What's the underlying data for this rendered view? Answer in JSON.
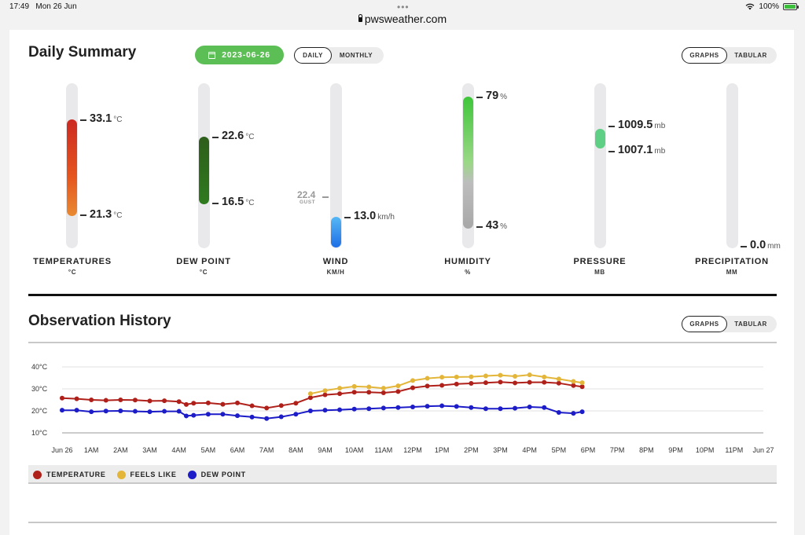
{
  "statusbar": {
    "time": "17:49",
    "date": "Mon 26 Jun",
    "battery": "100%",
    "url": "pwsweather.com"
  },
  "summary": {
    "title": "Daily Summary",
    "date": "2023-06-26",
    "period_tabs": [
      "DAILY",
      "MONTHLY"
    ],
    "view_tabs": [
      "GRAPHS",
      "TABULAR"
    ],
    "gauges": {
      "temperature": {
        "label": "TEMPERATURES",
        "unit_label": "°C",
        "high": "33.1",
        "low": "21.3",
        "unit": "°C"
      },
      "dewpoint": {
        "label": "DEW POINT",
        "unit_label": "°C",
        "high": "22.6",
        "low": "16.5",
        "unit": "°C"
      },
      "wind": {
        "label": "WIND",
        "unit_label": "KM/H",
        "value": "13.0",
        "unit": "km/h",
        "gust_value": "22.4",
        "gust_label": "GUST"
      },
      "humidity": {
        "label": "HUMIDITY",
        "unit_label": "%",
        "high": "79",
        "low": "43",
        "unit": "%"
      },
      "pressure": {
        "label": "PRESSURE",
        "unit_label": "MB",
        "high": "1009.5",
        "low": "1007.1",
        "unit": "mb"
      },
      "precipitation": {
        "label": "PRECIPITATION",
        "unit_label": "MM",
        "value": "0.0",
        "unit": "mm"
      }
    }
  },
  "history": {
    "title": "Observation History",
    "view_tabs": [
      "GRAPHS",
      "TABULAR"
    ]
  },
  "legend": [
    {
      "label": "TEMPERATURE",
      "color": "#b0201a"
    },
    {
      "label": "FEELS LIKE",
      "color": "#e3b63a"
    },
    {
      "label": "DEW POINT",
      "color": "#1c1cc8"
    }
  ],
  "chart_data": {
    "type": "line",
    "x_labels": [
      "Jun 26",
      "1AM",
      "2AM",
      "3AM",
      "4AM",
      "5AM",
      "6AM",
      "7AM",
      "8AM",
      "9AM",
      "10AM",
      "11AM",
      "12PM",
      "1PM",
      "2PM",
      "3PM",
      "4PM",
      "5PM",
      "6PM",
      "7PM",
      "8PM",
      "9PM",
      "10PM",
      "11PM",
      "Jun 27"
    ],
    "y_labels": [
      "40°C",
      "30°C",
      "20°C",
      "10°C"
    ],
    "ylim": [
      10,
      40
    ],
    "x_unit": "hours since Jun 26 00:00",
    "series": [
      {
        "name": "TEMPERATURE",
        "color": "#b0201a",
        "x": [
          0,
          0.5,
          1,
          1.5,
          2,
          2.5,
          3,
          3.5,
          4,
          4.25,
          4.5,
          5,
          5.5,
          6,
          6.5,
          7,
          7.5,
          8,
          8.5,
          9,
          9.5,
          10,
          10.5,
          11,
          11.5,
          12,
          12.5,
          13,
          13.5,
          14,
          14.5,
          15,
          15.5,
          16,
          16.5,
          17,
          17.5,
          17.8
        ],
        "y": [
          25.8,
          25.5,
          25.0,
          24.8,
          25.0,
          24.9,
          24.5,
          24.6,
          24.2,
          22.9,
          23.5,
          23.6,
          23.0,
          23.6,
          22.3,
          21.3,
          22.4,
          23.5,
          26.0,
          27.3,
          27.8,
          28.5,
          28.5,
          28.2,
          28.8,
          30.5,
          31.3,
          31.6,
          32.2,
          32.5,
          32.8,
          33.1,
          32.7,
          33.0,
          33.0,
          32.6,
          31.5,
          31.0
        ]
      },
      {
        "name": "FEELS LIKE",
        "color": "#e3b63a",
        "x": [
          8.5,
          9,
          9.5,
          10,
          10.5,
          11,
          11.5,
          12,
          12.5,
          13,
          13.5,
          14,
          14.5,
          15,
          15.5,
          16,
          16.5,
          17,
          17.5,
          17.8
        ],
        "y": [
          27.8,
          29.2,
          30.3,
          31.1,
          30.9,
          30.3,
          31.4,
          33.8,
          34.8,
          35.3,
          35.4,
          35.5,
          35.9,
          36.2,
          35.7,
          36.4,
          35.4,
          34.5,
          33.4,
          32.8
        ]
      },
      {
        "name": "DEW POINT",
        "color": "#1c1cc8",
        "x": [
          0,
          0.5,
          1,
          1.5,
          2,
          2.5,
          3,
          3.5,
          4,
          4.25,
          4.5,
          5,
          5.5,
          6,
          6.5,
          7,
          7.5,
          8,
          8.5,
          9,
          9.5,
          10,
          10.5,
          11,
          11.5,
          12,
          12.5,
          13,
          13.5,
          14,
          14.5,
          15,
          15.5,
          16,
          16.5,
          17,
          17.5,
          17.8
        ],
        "y": [
          20.3,
          20.3,
          19.6,
          19.9,
          20.0,
          19.8,
          19.6,
          19.8,
          19.8,
          17.7,
          18.0,
          18.5,
          18.5,
          17.8,
          17.2,
          16.5,
          17.3,
          18.5,
          20.0,
          20.3,
          20.5,
          20.8,
          21.0,
          21.3,
          21.5,
          21.8,
          22.1,
          22.3,
          22.0,
          21.5,
          21.0,
          21.0,
          21.2,
          21.8,
          21.5,
          19.3,
          18.9,
          19.6
        ]
      }
    ]
  }
}
